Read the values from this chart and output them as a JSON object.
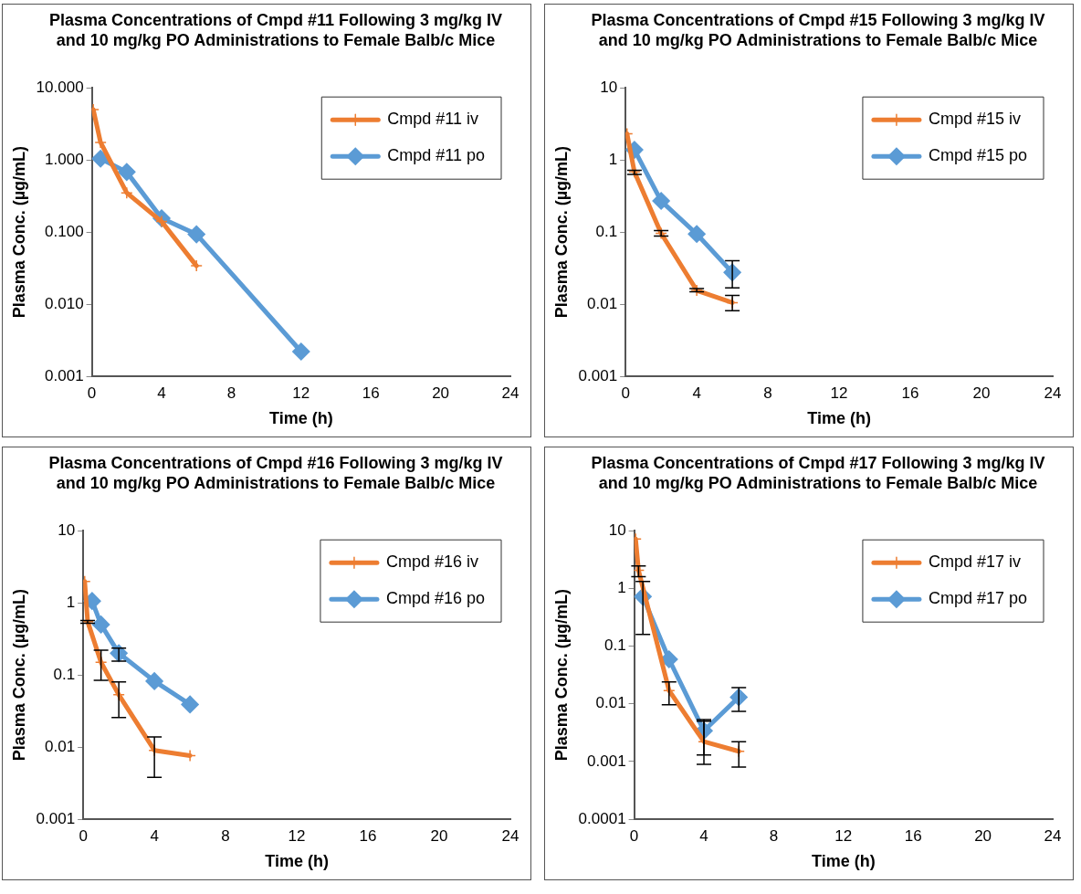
{
  "chart_data": [
    {
      "type": "line",
      "title": "Plasma Concentrations of Cmpd #11 Following 3 mg/kg IV and 10 mg/kg PO Administrations to Female Balb/c Mice",
      "xlabel": "Time (h)",
      "ylabel": "Plasma Conc. (µg/mL)",
      "log": "y",
      "grid": false,
      "legend": "top right",
      "line_style": "solid",
      "xlim": [
        0,
        24
      ],
      "xticks": [
        0,
        4,
        8,
        12,
        16,
        20,
        24
      ],
      "ylim": [
        0.001,
        10
      ],
      "yticks": [
        {
          "value": 0.001,
          "label": "0.001"
        },
        {
          "value": 0.01,
          "label": "0.010"
        },
        {
          "value": 0.1,
          "label": "0.100"
        },
        {
          "value": 1,
          "label": "1.000"
        },
        {
          "value": 10,
          "label": "10.000"
        }
      ],
      "series": [
        {
          "name": "Cmpd #11 iv",
          "color": "#ed7d31",
          "marker": "cross",
          "x": [
            0.083,
            0.5,
            2,
            4,
            6
          ],
          "values": [
            5.0,
            1.75,
            0.35,
            0.14,
            0.034
          ]
        },
        {
          "name": "Cmpd #11 po",
          "color": "#5b9bd5",
          "marker": "diamond",
          "x": [
            0.5,
            2,
            4,
            6,
            12
          ],
          "values": [
            1.04,
            0.68,
            0.155,
            0.093,
            0.0022
          ]
        }
      ]
    },
    {
      "type": "line",
      "title": "Plasma Concentrations of Cmpd #15 Following 3 mg/kg IV and 10 mg/kg PO Administrations to Female Balb/c Mice",
      "xlabel": "Time (h)",
      "ylabel": "Plasma Conc. (µg/mL)",
      "log": "y",
      "grid": false,
      "legend": "top right",
      "line_style": "solid",
      "xlim": [
        0,
        24
      ],
      "xticks": [
        0,
        4,
        8,
        12,
        16,
        20,
        24
      ],
      "ylim": [
        0.001,
        10
      ],
      "yticks": [
        0.001,
        0.01,
        0.1,
        1,
        10
      ],
      "series": [
        {
          "name": "Cmpd #15 iv",
          "color": "#ed7d31",
          "marker": "cross",
          "x": [
            0.083,
            0.5,
            2,
            4,
            6
          ],
          "values": [
            2.3,
            0.68,
            0.096,
            0.0155,
            0.0105
          ],
          "errors": [
            null,
            [
              0.63,
              0.72
            ],
            [
              0.088,
              0.105
            ],
            [
              0.0148,
              0.0165
            ],
            [
              0.0081,
              0.0132
            ]
          ]
        },
        {
          "name": "Cmpd #15 po",
          "color": "#5b9bd5",
          "marker": "diamond",
          "x": [
            0.5,
            2,
            4,
            6
          ],
          "values": [
            1.38,
            0.27,
            0.094,
            0.0275
          ],
          "errors": [
            null,
            null,
            null,
            [
              0.0168,
              0.04
            ]
          ]
        }
      ]
    },
    {
      "type": "line",
      "title": "Plasma Concentrations of Cmpd #16 Following 3 mg/kg IV and 10 mg/kg PO Administrations to Female Balb/c Mice",
      "xlabel": "Time (h)",
      "ylabel": "Plasma Conc. (µg/mL)",
      "log": "y",
      "grid": false,
      "legend": "top right",
      "line_style": "solid",
      "xlim": [
        0,
        24
      ],
      "xticks": [
        0,
        4,
        8,
        12,
        16,
        20,
        24
      ],
      "ylim": [
        0.001,
        10
      ],
      "yticks": [
        0.001,
        0.01,
        0.1,
        1,
        10
      ],
      "series": [
        {
          "name": "Cmpd #16 iv",
          "color": "#ed7d31",
          "marker": "cross",
          "x": [
            0.083,
            0.25,
            1,
            2,
            4,
            6
          ],
          "values": [
            1.98,
            0.55,
            0.15,
            0.053,
            0.009,
            0.0076
          ],
          "errors": [
            null,
            [
              0.52,
              0.57
            ],
            [
              0.084,
              0.22
            ],
            [
              0.0257,
              0.08
            ],
            [
              0.0038,
              0.0138
            ],
            null
          ]
        },
        {
          "name": "Cmpd #16 po",
          "color": "#5b9bd5",
          "marker": "diamond",
          "x": [
            0.5,
            1,
            2,
            4,
            6
          ],
          "values": [
            1.06,
            0.5,
            0.2,
            0.082,
            0.039
          ],
          "errors": [
            null,
            null,
            [
              0.155,
              0.235
            ],
            null,
            null
          ]
        }
      ]
    },
    {
      "type": "line",
      "title": "Plasma Concentrations of Cmpd #17 Following 3 mg/kg IV and 10 mg/kg PO Administrations to Female Balb/c Mice",
      "xlabel": "Time (h)",
      "ylabel": "Plasma Conc. (µg/mL)",
      "log": "y",
      "grid": false,
      "legend": "top right",
      "line_style": "solid",
      "xlim": [
        0,
        24
      ],
      "xticks": [
        0,
        4,
        8,
        12,
        16,
        20,
        24
      ],
      "ylim": [
        0.0001,
        10
      ],
      "yticks": [
        0.0001,
        0.001,
        0.01,
        0.1,
        1,
        10
      ],
      "series": [
        {
          "name": "Cmpd #17 iv",
          "color": "#ed7d31",
          "marker": "cross",
          "x": [
            0.083,
            0.25,
            2,
            4,
            6
          ],
          "values": [
            7.2,
            2.06,
            0.017,
            0.0022,
            0.0015
          ],
          "errors": [
            null,
            [
              1.6,
              2.45
            ],
            [
              0.0096,
              0.024
            ],
            [
              0.00089,
              0.005
            ],
            [
              0.0008,
              0.0022
            ]
          ]
        },
        {
          "name": "Cmpd #17 po",
          "color": "#5b9bd5",
          "marker": "diamond",
          "x": [
            0.5,
            2,
            4,
            6
          ],
          "values": [
            0.72,
            0.059,
            0.0034,
            0.013
          ],
          "errors": [
            [
              0.16,
              1.32
            ],
            null,
            [
              0.0013,
              0.0053
            ],
            [
              0.0074,
              0.019
            ]
          ]
        }
      ]
    }
  ]
}
